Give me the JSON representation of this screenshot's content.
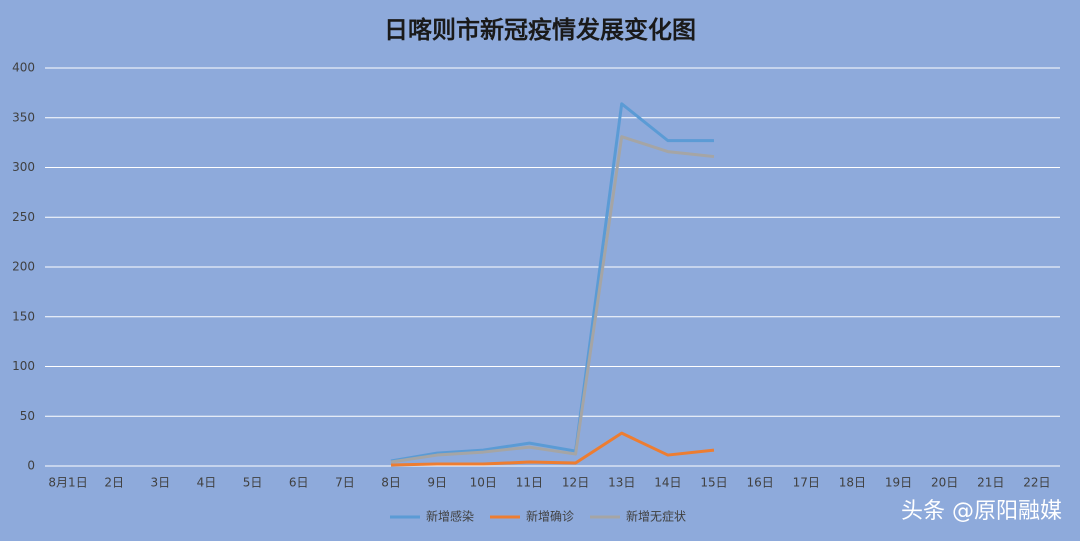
{
  "chart_data": {
    "type": "line",
    "title": "日喀则市新冠疫情发展变化图",
    "categories": [
      "8月1日",
      "2日",
      "3日",
      "4日",
      "5日",
      "6日",
      "7日",
      "8日",
      "9日",
      "10日",
      "11日",
      "12日",
      "13日",
      "14日",
      "15日",
      "16日",
      "17日",
      "18日",
      "19日",
      "20日",
      "21日",
      "22日"
    ],
    "series": [
      {
        "name": "新增感染",
        "color": "#5b9bd5",
        "values": [
          null,
          null,
          null,
          null,
          null,
          null,
          null,
          5,
          13,
          16,
          23,
          15,
          364,
          327,
          327,
          null,
          null,
          null,
          null,
          null,
          null,
          null
        ]
      },
      {
        "name": "新增确诊",
        "color": "#ed7d31",
        "values": [
          null,
          null,
          null,
          null,
          null,
          null,
          null,
          1,
          2,
          2,
          4,
          3,
          33,
          11,
          16,
          null,
          null,
          null,
          null,
          null,
          null,
          null
        ]
      },
      {
        "name": "新增无症状",
        "color": "#a5a5a5",
        "values": [
          null,
          null,
          null,
          null,
          null,
          null,
          null,
          4,
          11,
          14,
          19,
          12,
          331,
          316,
          311,
          null,
          null,
          null,
          null,
          null,
          null,
          null
        ]
      }
    ],
    "ylim": [
      0,
      400
    ],
    "yticks": [
      0,
      50,
      100,
      150,
      200,
      250,
      300,
      350,
      400
    ],
    "grid": true,
    "legend": "bottom",
    "watermark": "头条 @原阳融媒"
  }
}
